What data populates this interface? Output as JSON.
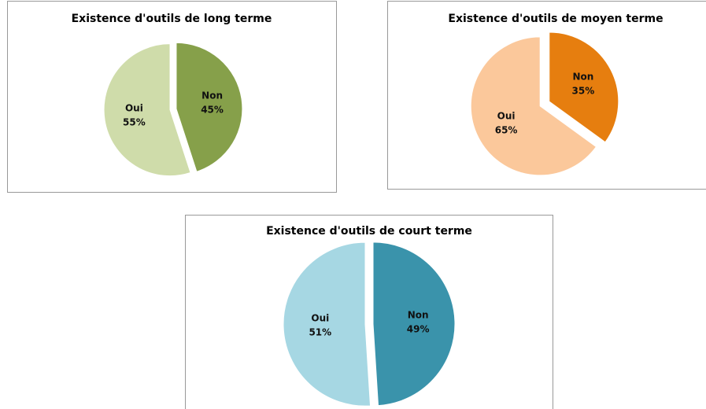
{
  "chart_data": [
    {
      "type": "pie",
      "title": "Existence d'outils de long terme",
      "categories": [
        "Non",
        "Oui"
      ],
      "values": [
        45,
        55
      ],
      "value_labels": [
        "45%",
        "55%"
      ],
      "colors": [
        "#86a04a",
        "#cfdcaa"
      ]
    },
    {
      "type": "pie",
      "title": "Existence d'outils de moyen terme",
      "categories": [
        "Non",
        "Oui"
      ],
      "values": [
        35,
        65
      ],
      "value_labels": [
        "35%",
        "65%"
      ],
      "colors": [
        "#e67e0f",
        "#fbc89b"
      ]
    },
    {
      "type": "pie",
      "title": "Existence d'outils de court terme",
      "categories": [
        "Non",
        "Oui"
      ],
      "values": [
        49,
        51
      ],
      "value_labels": [
        "49%",
        "51%"
      ],
      "colors": [
        "#3a93ab",
        "#a6d7e3"
      ]
    }
  ]
}
